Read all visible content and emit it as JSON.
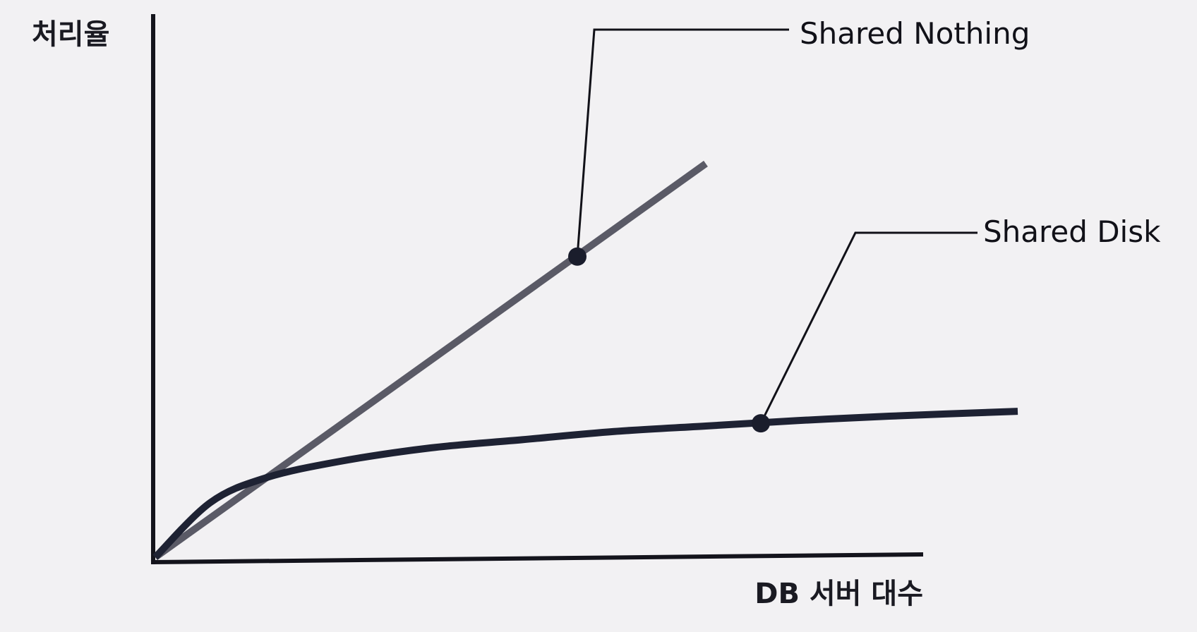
{
  "chart_data": {
    "type": "line",
    "title": "",
    "xlabel": "DB 서버 대수",
    "ylabel": "처리율",
    "x_range": [
      0,
      10
    ],
    "y_range": [
      0,
      10
    ],
    "grid": false,
    "legend": "callout labels at right",
    "series": [
      {
        "name": "Shared Nothing",
        "color": "#5a5a66",
        "x": [
          0,
          6
        ],
        "y": [
          0,
          7.2
        ],
        "marker": {
          "x": 4.6,
          "y": 5.5
        }
      },
      {
        "name": "Shared Disk",
        "color": "#1e2233",
        "x": [
          0,
          0.6,
          1.2,
          2.0,
          3.0,
          4.0,
          5.0,
          6.0,
          7.0,
          8.0,
          9.4
        ],
        "y": [
          0,
          1.0,
          1.45,
          1.75,
          2.0,
          2.15,
          2.3,
          2.4,
          2.5,
          2.58,
          2.67
        ],
        "marker": {
          "x": 6.6,
          "y": 2.45
        }
      }
    ]
  }
}
